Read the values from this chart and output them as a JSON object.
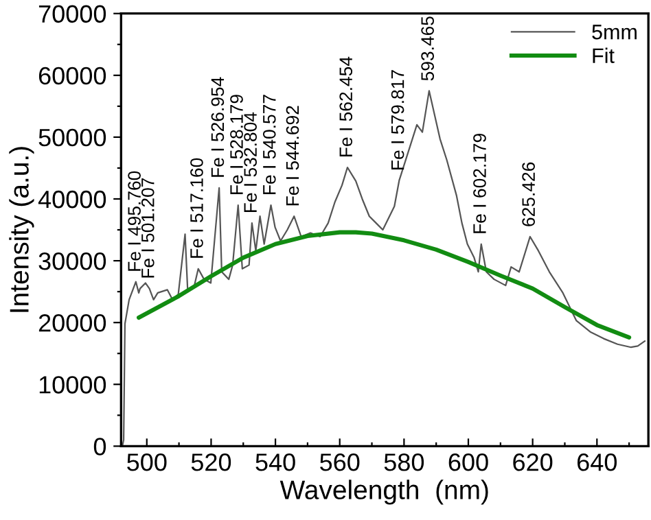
{
  "chart_data": {
    "type": "line",
    "xlabel": "Wavelength  (nm)",
    "ylabel": "Intensity (a.u.)",
    "xlim": [
      492,
      656
    ],
    "ylim": [
      0,
      70000
    ],
    "xticks": [
      500,
      {
        "value": 510,
        "label": null
      },
      520,
      {
        "value": 530,
        "label": null
      },
      540,
      {
        "value": 550,
        "label": null
      },
      560,
      {
        "value": 570,
        "label": null
      },
      580,
      {
        "value": 590,
        "label": null
      },
      600,
      {
        "value": 610,
        "label": null
      },
      620,
      {
        "value": 630,
        "label": null
      },
      640,
      {
        "value": 650,
        "label": null
      }
    ],
    "yticks": [
      0,
      {
        "value": 5000,
        "label": null
      },
      10000,
      {
        "value": 15000,
        "label": null
      },
      20000,
      {
        "value": 25000,
        "label": null
      },
      30000,
      {
        "value": 35000,
        "label": null
      },
      40000,
      {
        "value": 45000,
        "label": null
      },
      50000,
      {
        "value": 55000,
        "label": null
      },
      60000,
      {
        "value": 65000,
        "label": null
      },
      70000
    ],
    "grid": false,
    "legend": "top right",
    "marker": "none",
    "line_style": "solid",
    "series": [
      {
        "name": "5mm",
        "color": "#555555",
        "x": [
          492.4,
          492.8,
          493.2,
          494.5,
          496.6,
          497.5,
          497.9,
          499.6,
          500.8,
          502.1,
          503.4,
          506.4,
          508,
          509.8,
          511.9,
          512.7,
          514.8,
          516,
          517.8,
          519.9,
          522.5,
          523.3,
          525.5,
          526.7,
          528.4,
          529.7,
          531.8,
          532.7,
          533.9,
          535.2,
          536.5,
          538.6,
          539.9,
          541.6,
          543.7,
          545.8,
          548,
          550.9,
          553.9,
          556.4,
          558.5,
          560.7,
          562.4,
          565,
          567,
          569.2,
          571.3,
          573.4,
          577,
          578.5,
          584,
          585.7,
          587.8,
          591.2,
          593.3,
          596.3,
          598,
          599.7,
          601.8,
          603.1,
          604,
          605.6,
          608,
          611.6,
          613.3,
          615.8,
          619.2,
          621.8,
          625.2,
          629.4,
          633.6,
          637.9,
          642.1,
          646.4,
          650.6,
          652.7,
          654.9
        ],
        "values": [
          0,
          1000,
          19800,
          23700,
          26600,
          24800,
          25500,
          26400,
          25500,
          23700,
          24800,
          25300,
          23700,
          24600,
          34300,
          25300,
          26000,
          28700,
          27000,
          26400,
          41800,
          28200,
          27000,
          29300,
          39000,
          28700,
          29300,
          36100,
          31600,
          37200,
          32700,
          39000,
          35400,
          33200,
          35000,
          37200,
          33900,
          34500,
          33900,
          36100,
          39500,
          42200,
          45100,
          42900,
          40000,
          37200,
          36100,
          35000,
          38800,
          43000,
          52000,
          50800,
          57500,
          49700,
          46300,
          40600,
          36100,
          32700,
          30500,
          28200,
          32700,
          28200,
          27000,
          26000,
          29000,
          28200,
          33900,
          31600,
          28200,
          24800,
          20300,
          18500,
          17400,
          16500,
          16000,
          16200,
          17000
        ]
      },
      {
        "name": "Fit",
        "color": "#128c12",
        "x": [
          497.5,
          510,
          520,
          530,
          540,
          550,
          560,
          565,
          570,
          580,
          590,
          600,
          610,
          620,
          630,
          640,
          650
        ],
        "values": [
          20800,
          24300,
          27500,
          30500,
          32700,
          34000,
          34600,
          34600,
          34400,
          33300,
          31800,
          29800,
          27600,
          25500,
          22500,
          19600,
          17600
        ]
      }
    ],
    "annotations": [
      {
        "text": "Fe I 495.760",
        "x": 496.6,
        "y": 26600
      },
      {
        "text": "Fe I 501.207",
        "x": 500.8,
        "y": 25500
      },
      {
        "text": "Fe I 517.160",
        "x": 516,
        "y": 28700
      },
      {
        "text": "Fe I 526.954",
        "x": 522.5,
        "y": 41800
      },
      {
        "text": "Fe I 528.179",
        "x": 528.4,
        "y": 39000
      },
      {
        "text": "Fe I 532.804",
        "x": 532.7,
        "y": 36100
      },
      {
        "text": "Fe I 540.577",
        "x": 538.6,
        "y": 39000
      },
      {
        "text": "Fe I 544.692",
        "x": 545.8,
        "y": 37200
      },
      {
        "text": "Fe I 562.454",
        "x": 562.4,
        "y": 45100
      },
      {
        "text": "Fe I 579.817",
        "x": 578.5,
        "y": 43000
      },
      {
        "text": "593.465",
        "x": 587.8,
        "y": 57500
      },
      {
        "text": "Fe I 602.179",
        "x": 604,
        "y": 32700
      },
      {
        "text": "625.426",
        "x": 619.2,
        "y": 33900
      }
    ]
  }
}
